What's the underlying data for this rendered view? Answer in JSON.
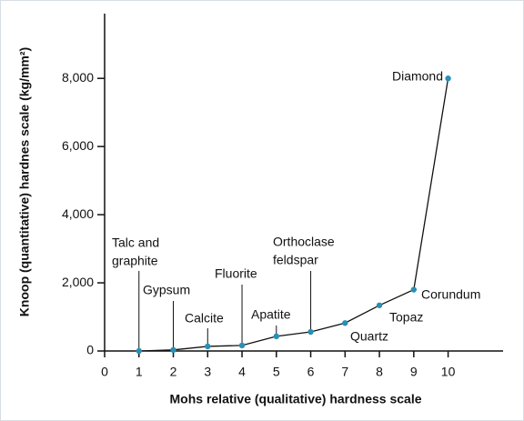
{
  "chart_data": {
    "type": "line",
    "x_label": "Mohs relative (qualitative) hardness scale",
    "y_label": "Knoop (quantitative) hardnes scale (kg/mm²)",
    "x": [
      1,
      2,
      3,
      4,
      5,
      6,
      7,
      8,
      9,
      10
    ],
    "series": [
      {
        "color": "#2a8fb5",
        "values": [
          1,
          32,
          135,
          163,
          430,
          560,
          820,
          1340,
          1800,
          8000
        ]
      }
    ],
    "point_labels": [
      [
        "Talc and",
        "graphite"
      ],
      [
        "Gypsum"
      ],
      [
        "Calcite"
      ],
      [
        "Fluorite"
      ],
      [
        "Apatite"
      ],
      [
        "Orthoclase",
        "feldspar"
      ],
      [
        "Quartz"
      ],
      [
        "Topaz"
      ],
      [
        "Corundum"
      ],
      [
        "Diamond"
      ]
    ],
    "xlim": [
      0,
      11.6
    ],
    "xticks": [
      0,
      1,
      2,
      3,
      4,
      5,
      6,
      7,
      8,
      9,
      10
    ],
    "ylim": [
      0,
      9900
    ],
    "yticks": [
      0,
      {
        "value": 2000,
        "label": "2,000"
      },
      {
        "value": 4000,
        "label": "4,000"
      },
      {
        "value": 6000,
        "label": "6,000"
      },
      {
        "value": 8000,
        "label": "8,000"
      }
    ],
    "grid": false
  }
}
